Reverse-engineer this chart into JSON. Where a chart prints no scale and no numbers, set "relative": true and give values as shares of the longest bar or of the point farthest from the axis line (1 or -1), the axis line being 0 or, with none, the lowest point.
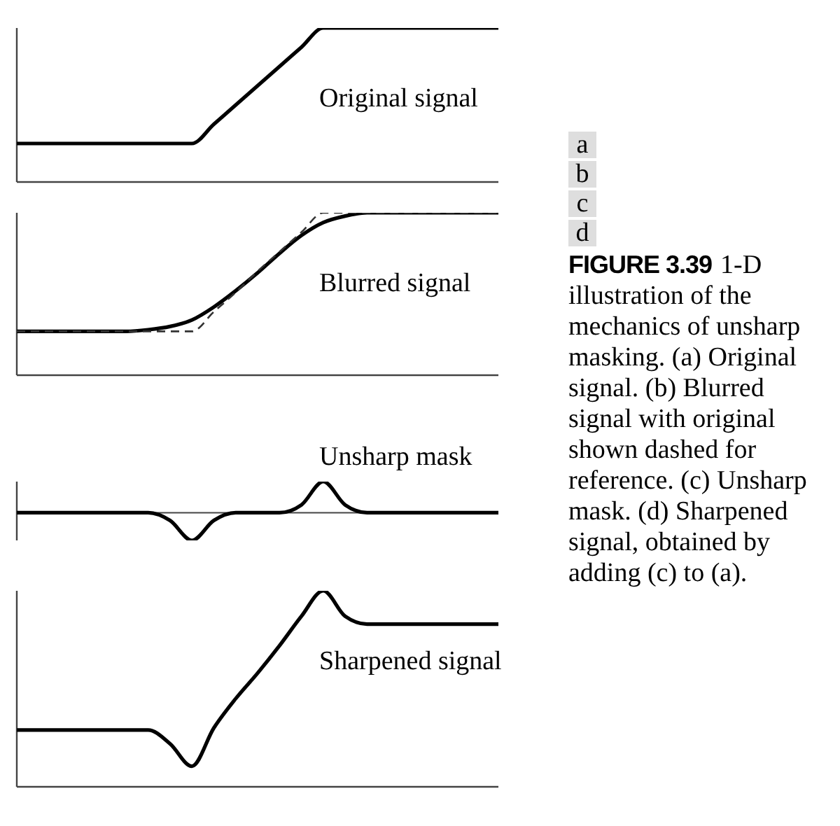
{
  "chart_data": [
    {
      "type": "line",
      "title": "Original signal",
      "relative": true,
      "annotations": [
        "a",
        "FIGURE 3.39",
        "1-D illustration of the mechanics of unsharp masking. (a) Original signal. (b) Blurred signal with original shown dashed for reference. (c) Unsharp mask. (d) Sharpened signal, obtained by adding (c) to (a)."
      ],
      "categories": [
        null,
        null,
        null,
        null,
        null,
        null,
        null,
        null,
        null,
        null,
        null,
        null,
        null,
        null,
        null,
        null,
        null,
        null,
        null,
        null,
        null,
        null,
        null
      ],
      "series": [
        {
          "color": "#000000",
          "line_style": "solid",
          "values": [
            0.25,
            0.25,
            0.25,
            0.25,
            0.25,
            0.25,
            0.25,
            0.25,
            0.25,
            0.375,
            0.5,
            0.625,
            0.75,
            0.875,
            1,
            1,
            1,
            1,
            1,
            1,
            1,
            1,
            1
          ]
        }
      ]
    },
    {
      "type": "line",
      "title": "Blurred signal",
      "relative": true,
      "annotations": [
        "b"
      ],
      "categories": [
        null,
        null,
        null,
        null,
        null,
        null,
        null,
        null,
        null,
        null,
        null,
        null,
        null,
        null,
        null,
        null,
        null,
        null,
        null,
        null,
        null,
        null,
        null
      ],
      "series": [
        {
          "color": "#000000",
          "line_style": "solid",
          "values": [
            0.27,
            0.27,
            0.27,
            0.27,
            0.27,
            0.27,
            0.28,
            0.3,
            0.34,
            0.42,
            0.52,
            0.63,
            0.75,
            0.86,
            0.94,
            0.98,
            1,
            1,
            1,
            1,
            1,
            1,
            1
          ]
        },
        {
          "color": "#333333",
          "line_style": "dashed",
          "values": [
            0.27,
            0.27,
            0.27,
            0.27,
            0.27,
            0.27,
            0.27,
            0.27,
            0.27,
            0.39,
            0.51,
            0.64,
            0.76,
            0.88,
            1,
            1,
            1,
            1,
            1,
            1,
            1,
            1,
            1
          ]
        }
      ]
    },
    {
      "type": "line",
      "title": "Unsharp mask",
      "relative": true,
      "annotations": [
        "c"
      ],
      "categories": [
        null,
        null,
        null,
        null,
        null,
        null,
        null,
        null,
        null,
        null,
        null,
        null,
        null,
        null,
        null,
        null,
        null,
        null,
        null,
        null,
        null,
        null,
        null
      ],
      "series": [
        {
          "color": "#000000",
          "line_style": "solid",
          "values": [
            0,
            0,
            0,
            0,
            0,
            0,
            0,
            -0.25,
            -0.89,
            -0.25,
            0,
            0,
            0,
            0.25,
            1,
            0.25,
            0,
            0,
            0,
            0,
            0,
            0,
            0
          ]
        }
      ]
    },
    {
      "type": "line",
      "title": "Sharpened signal",
      "relative": true,
      "annotations": [
        "d"
      ],
      "categories": [
        null,
        null,
        null,
        null,
        null,
        null,
        null,
        null,
        null,
        null,
        null,
        null,
        null,
        null,
        null,
        null,
        null,
        null,
        null,
        null,
        null,
        null,
        null
      ],
      "series": [
        {
          "color": "#000000",
          "line_style": "solid",
          "values": [
            0.29,
            0.29,
            0.29,
            0.29,
            0.29,
            0.29,
            0.29,
            0.22,
            0.105,
            0.3,
            0.45,
            0.58,
            0.72,
            0.87,
            1,
            0.87,
            0.83,
            0.83,
            0.83,
            0.83,
            0.83,
            0.83,
            0.83
          ]
        }
      ]
    }
  ]
}
